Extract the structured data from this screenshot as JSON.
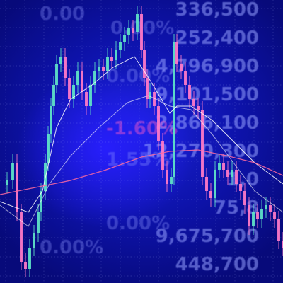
{
  "ticker": {
    "right_values": [
      "336,500",
      "252,400",
      "4,796,900",
      "9,101,500",
      "2,866,100",
      "12,270,300",
      "1,0",
      "75,8",
      "9,675,700",
      "448,700"
    ],
    "percent_values": [
      "0.00",
      "0.00%",
      "0.00%",
      "-1.60%",
      "1.55%",
      "0.00%",
      "0.00%"
    ]
  },
  "colors": {
    "background": "#0d12a8",
    "candle_up": "#5fe3c8",
    "candle_down": "#ff7ac8",
    "ma_short": "#ffffff",
    "ma_long": "#ff6aa0"
  },
  "chart_data": {
    "type": "candlestick",
    "series": [
      {
        "name": "",
        "values": []
      }
    ]
  }
}
